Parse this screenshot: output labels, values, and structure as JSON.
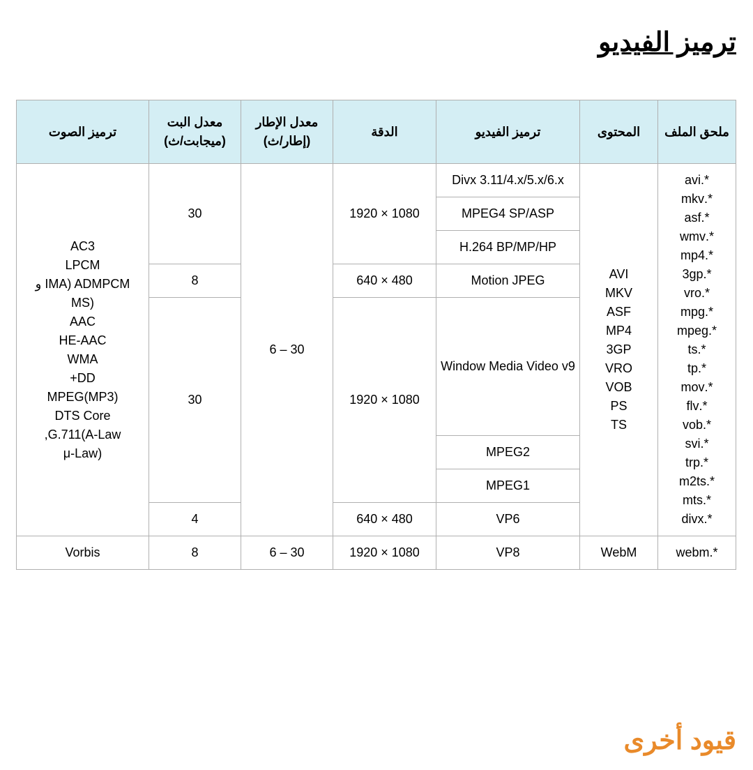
{
  "title": "ترميز الفيديو",
  "footer": "قيود أخرى",
  "colors": {
    "header_bg": "#d4eef4",
    "border": "#b0b0b0",
    "text": "#000000",
    "footer_text": "#e98a2a",
    "page_bg": "#ffffff"
  },
  "table": {
    "headers": {
      "file_ext": "ملحق الملف",
      "container": "المحتوى",
      "video_codec": "ترميز الفيديو",
      "resolution": "الدقة",
      "frame_rate_label": "معدل الإطار",
      "frame_rate_unit": "(إطار/ث)",
      "bitrate_label": "معدل البت",
      "bitrate_unit": "(ميجابت/ث)",
      "audio_codec": "ترميز الصوت"
    },
    "file_ext": [
      "*.avi",
      "*.mkv",
      "*.asf",
      "*.wmv",
      "*.mp4",
      "*.3gp",
      "*.vro",
      "*.mpg",
      "*.mpeg",
      "*.ts",
      "*.tp",
      "*.mov",
      "*.flv",
      "*.vob",
      "*.svi",
      "*.trp",
      "*.m2ts",
      "*.mts",
      "*.divx"
    ],
    "container": [
      "AVI",
      "MKV",
      "ASF",
      "MP4",
      "3GP",
      "VRO",
      "VOB",
      "PS",
      "TS"
    ],
    "video_codecs": {
      "divx": "Divx 3.11/4.x/5.x/6.x",
      "mpeg4": "MPEG4 SP/ASP",
      "h264": "H.264 BP/MP/HP",
      "mjpeg": "Motion JPEG",
      "wmv9": "Window Media Video v9",
      "mpeg2": "MPEG2",
      "mpeg1": "MPEG1",
      "vp6": "VP6",
      "vp8": "VP8"
    },
    "resolution_1080": "1080 × 1920",
    "resolution_480": "480 × 640",
    "frame_rate": "30 – 6",
    "bitrate_30": "30",
    "bitrate_8": "8",
    "bitrate_4": "4",
    "audio_codec_main": [
      "AC3",
      "LPCM",
      "IMA) ADMPCM و",
      "(MS",
      "AAC",
      "HE-AAC",
      "WMA",
      "DD+",
      "MPEG(MP3)",
      "DTS Core",
      "G.711(A-Law,",
      "(μ-Law"
    ],
    "webm": {
      "file_ext": "*.webm",
      "container": "WebM",
      "video_codec": "VP8",
      "resolution": "1080 × 1920",
      "frame_rate": "30 – 6",
      "bitrate": "8",
      "audio_codec": "Vorbis"
    }
  }
}
